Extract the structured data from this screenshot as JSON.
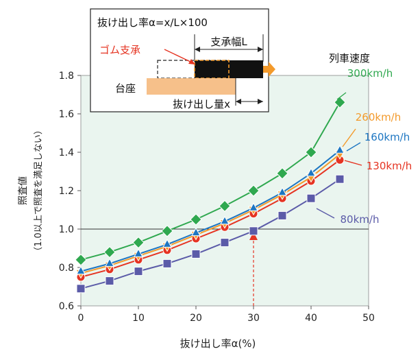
{
  "chart_data": {
    "type": "line",
    "xlabel": "抜け出し率α(%)",
    "ylabel_main": "照査値",
    "ylabel_sub": "（1.0以上で照査を満足しない）",
    "x": [
      0,
      5,
      10,
      15,
      20,
      25,
      30,
      35,
      40,
      45
    ],
    "xlim": [
      0,
      50
    ],
    "ylim": [
      0.6,
      1.8
    ],
    "x_ticks": [
      "0",
      "10",
      "20",
      "30",
      "40",
      "50"
    ],
    "y_ticks": [
      "0.6",
      "0.8",
      "1.0",
      "1.2",
      "1.4",
      "1.6",
      "1.8"
    ],
    "reference_line": 1.0,
    "marker_line_x": 30,
    "legend_title": "列車速度",
    "series": [
      {
        "name": "300km/h",
        "color": "#2fa84f",
        "marker": "diamond",
        "values": [
          0.84,
          0.88,
          0.93,
          0.99,
          1.05,
          1.12,
          1.2,
          1.29,
          1.4,
          1.66
        ]
      },
      {
        "name": "260km/h",
        "color": "#f39a2b",
        "marker": "triangle-down",
        "values": [
          0.77,
          0.81,
          0.86,
          0.91,
          0.97,
          1.03,
          1.1,
          1.18,
          1.27,
          1.39
        ]
      },
      {
        "name": "160km/h",
        "color": "#1d76c2",
        "marker": "triangle-up",
        "values": [
          0.78,
          0.82,
          0.87,
          0.92,
          0.98,
          1.04,
          1.11,
          1.19,
          1.29,
          1.41
        ]
      },
      {
        "name": "130km/h",
        "color": "#e53422",
        "marker": "circle",
        "values": [
          0.75,
          0.79,
          0.84,
          0.89,
          0.95,
          1.01,
          1.08,
          1.16,
          1.25,
          1.36
        ]
      },
      {
        "name": "80km/h",
        "color": "#5b5ba8",
        "marker": "square",
        "values": [
          0.69,
          0.73,
          0.78,
          0.82,
          0.87,
          0.93,
          0.99,
          1.07,
          1.16,
          1.26
        ]
      }
    ]
  },
  "inset": {
    "formula": "抜け出し率α=x/L×100",
    "bearing_width": "支承幅L",
    "rubber_bearing": "ゴム支承",
    "pedestal": "台座",
    "pullout_amount": "抜け出し量x"
  }
}
